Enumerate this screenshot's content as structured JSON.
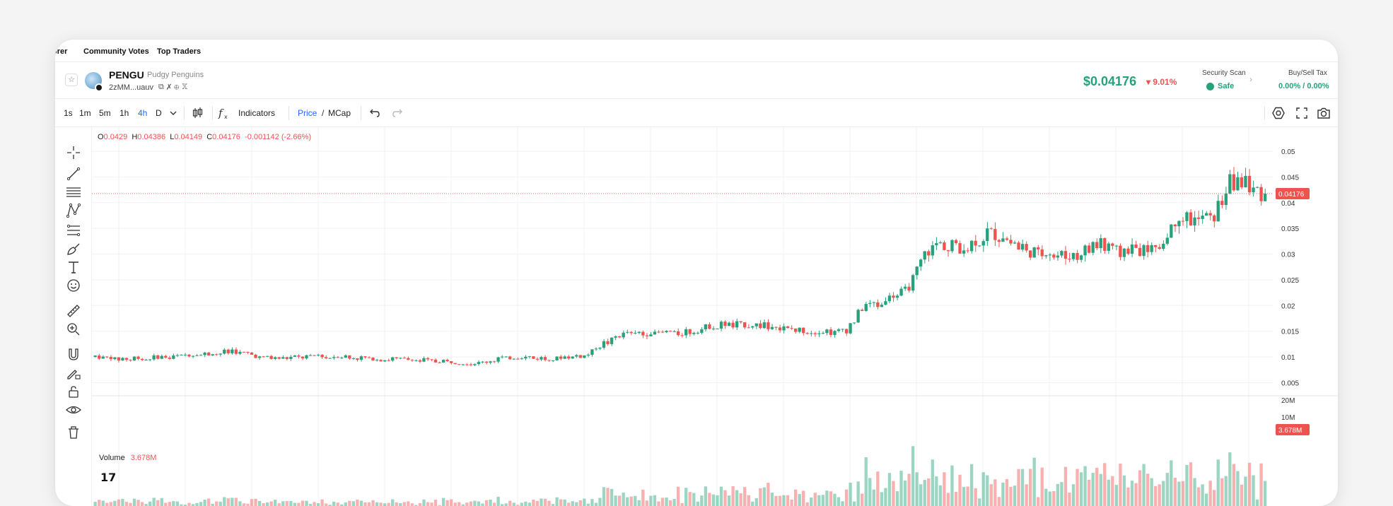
{
  "tabs": [
    "orer",
    "Community Votes",
    "Top Traders"
  ],
  "token": {
    "symbol": "PENGU",
    "name": "Pudgy Penguins",
    "address": "2zMM...uauv",
    "price": "$0.04176",
    "change": "▾ 9.01%",
    "security_label": "Security Scan",
    "security_value": "Safe",
    "tax_label": "Buy/Sell Tax",
    "tax_value": "0.00% / 0.00%"
  },
  "toolbar": {
    "intervals": [
      "1s",
      "1m",
      "5m",
      "1h",
      "4h",
      "D"
    ],
    "active_interval": "4h",
    "indicators_label": "Indicators",
    "price_label": "Price",
    "mcap_label": "MCap"
  },
  "ohlc": {
    "o_label": "O",
    "o_value": "0.0429",
    "h_label": "H",
    "h_value": "0.04386",
    "l_label": "L",
    "l_value": "0.04149",
    "c_label": "C",
    "c_value": "0.04176",
    "change_value": "-0.001142 (-2.66%)"
  },
  "volume": {
    "label": "Volume",
    "value": "3.678M",
    "last_badge": "3.678M"
  },
  "price_badge": "0.04176",
  "colors": {
    "up": "#26a17b",
    "down": "#ef5350",
    "accent": "#2962ff"
  },
  "chart_data": {
    "type": "candlestick",
    "y_ticks": [
      "0.05",
      "0.045",
      "0.04",
      "0.035",
      "0.03",
      "0.025",
      "0.02",
      "0.015",
      "0.01",
      "0.005"
    ],
    "ylim": [
      0.003,
      0.05
    ],
    "volume_ticks": [
      "20M",
      "10M"
    ],
    "last_price": 0.04176,
    "close_path": [
      [
        0,
        0.01
      ],
      [
        10,
        0.0096
      ],
      [
        20,
        0.0098
      ],
      [
        30,
        0.01
      ],
      [
        40,
        0.0104
      ],
      [
        50,
        0.0107
      ],
      [
        55,
        0.0112
      ],
      [
        60,
        0.0108
      ],
      [
        70,
        0.0098
      ],
      [
        80,
        0.0098
      ],
      [
        90,
        0.01
      ],
      [
        100,
        0.0102
      ],
      [
        110,
        0.0098
      ],
      [
        120,
        0.0095
      ],
      [
        130,
        0.0096
      ],
      [
        140,
        0.0093
      ],
      [
        150,
        0.0089
      ],
      [
        160,
        0.0087
      ],
      [
        170,
        0.0097
      ],
      [
        180,
        0.0099
      ],
      [
        190,
        0.0097
      ],
      [
        200,
        0.0099
      ],
      [
        205,
        0.0101
      ],
      [
        210,
        0.012
      ],
      [
        215,
        0.013
      ],
      [
        220,
        0.0142
      ],
      [
        230,
        0.0146
      ],
      [
        240,
        0.0146
      ],
      [
        250,
        0.0149
      ],
      [
        255,
        0.0158
      ],
      [
        265,
        0.0164
      ],
      [
        275,
        0.0162
      ],
      [
        285,
        0.016
      ],
      [
        290,
        0.0151
      ],
      [
        300,
        0.0151
      ],
      [
        310,
        0.0147
      ],
      [
        315,
        0.015
      ],
      [
        320,
        0.019
      ],
      [
        330,
        0.021
      ],
      [
        340,
        0.023
      ],
      [
        348,
        0.03
      ],
      [
        355,
        0.032
      ],
      [
        365,
        0.031
      ],
      [
        375,
        0.034
      ],
      [
        385,
        0.033
      ],
      [
        390,
        0.03
      ],
      [
        400,
        0.0305
      ],
      [
        410,
        0.0295
      ],
      [
        420,
        0.032
      ],
      [
        430,
        0.0305
      ],
      [
        445,
        0.031
      ],
      [
        455,
        0.038
      ],
      [
        460,
        0.036
      ],
      [
        468,
        0.037
      ],
      [
        475,
        0.044
      ],
      [
        480,
        0.0445
      ],
      [
        485,
        0.042
      ],
      [
        490,
        0.04176
      ]
    ]
  }
}
